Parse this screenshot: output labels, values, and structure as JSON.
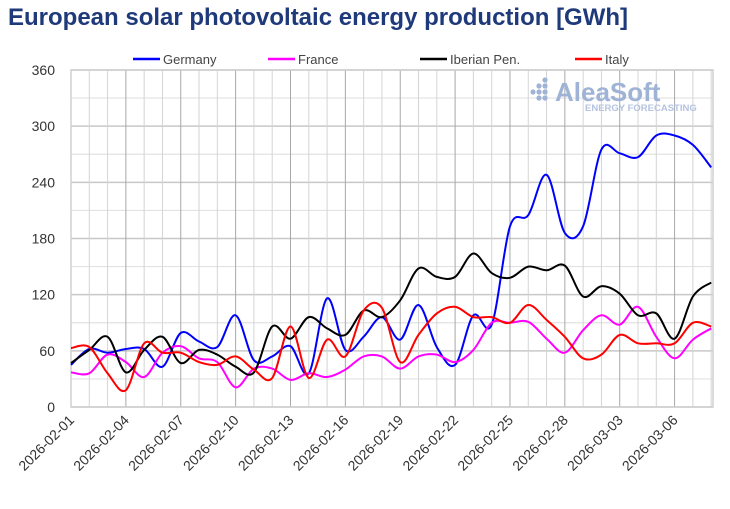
{
  "chart_data": {
    "type": "line",
    "title": "European solar photovoltaic energy production [GWh]",
    "xlabel": "",
    "ylabel": "",
    "ylim": [
      0,
      360
    ],
    "yticks": [
      0,
      60,
      120,
      180,
      240,
      300,
      360
    ],
    "grid": true,
    "legend_position": "top",
    "watermark": {
      "brand": "AleaSoft",
      "tagline": "ENERGY FORECASTING"
    },
    "x": [
      "2026-02-01",
      "2026-02-02",
      "2026-02-03",
      "2026-02-04",
      "2026-02-05",
      "2026-02-06",
      "2026-02-07",
      "2026-02-08",
      "2026-02-09",
      "2026-02-10",
      "2026-02-11",
      "2026-02-12",
      "2026-02-13",
      "2026-02-14",
      "2026-02-15",
      "2026-02-16",
      "2026-02-17",
      "2026-02-18",
      "2026-02-19",
      "2026-02-20",
      "2026-02-21",
      "2026-02-22",
      "2026-02-23",
      "2026-02-24",
      "2026-02-25",
      "2026-02-26",
      "2026-02-27",
      "2026-02-28",
      "2026-03-01",
      "2026-03-02",
      "2026-03-03",
      "2026-03-04",
      "2026-03-05",
      "2026-03-06",
      "2026-03-07",
      "2026-03-08"
    ],
    "xtick_labels": [
      "2026-02-01",
      "2026-02-04",
      "2026-02-07",
      "2026-02-10",
      "2026-02-13",
      "2026-02-16",
      "2026-02-19",
      "2026-02-22",
      "2026-02-25",
      "2026-02-28",
      "2026-03-03",
      "2026-03-06"
    ],
    "series": [
      {
        "name": "Germany",
        "color": "#0000ff",
        "values": [
          45,
          62,
          58,
          62,
          62,
          43,
          79,
          70,
          64,
          98,
          50,
          54,
          65,
          36,
          116,
          61,
          75,
          96,
          72,
          109,
          64,
          45,
          98,
          88,
          193,
          205,
          248,
          186,
          193,
          275,
          271,
          267,
          290,
          290,
          280,
          256
        ]
      },
      {
        "name": "France",
        "color": "#ff00ff",
        "values": [
          37,
          36,
          56,
          48,
          32,
          58,
          65,
          52,
          48,
          21,
          41,
          41,
          29,
          36,
          32,
          40,
          54,
          54,
          41,
          54,
          56,
          48,
          61,
          90,
          90,
          91,
          73,
          58,
          82,
          98,
          88,
          107,
          75,
          52,
          72,
          84
        ]
      },
      {
        "name": "Iberian Pen.",
        "color": "#000000",
        "values": [
          47,
          61,
          75,
          37,
          61,
          75,
          47,
          61,
          56,
          43,
          37,
          86,
          73,
          96,
          84,
          77,
          103,
          96,
          114,
          148,
          139,
          139,
          164,
          143,
          138,
          150,
          146,
          151,
          118,
          129,
          121,
          98,
          100,
          73,
          118,
          133
        ]
      },
      {
        "name": "Italy",
        "color": "#ff0000",
        "values": [
          63,
          64,
          36,
          18,
          68,
          58,
          58,
          48,
          45,
          54,
          40,
          31,
          86,
          31,
          72,
          54,
          103,
          106,
          48,
          77,
          100,
          107,
          96,
          96,
          90,
          109,
          93,
          75,
          52,
          56,
          77,
          68,
          68,
          68,
          90,
          86
        ]
      }
    ]
  }
}
